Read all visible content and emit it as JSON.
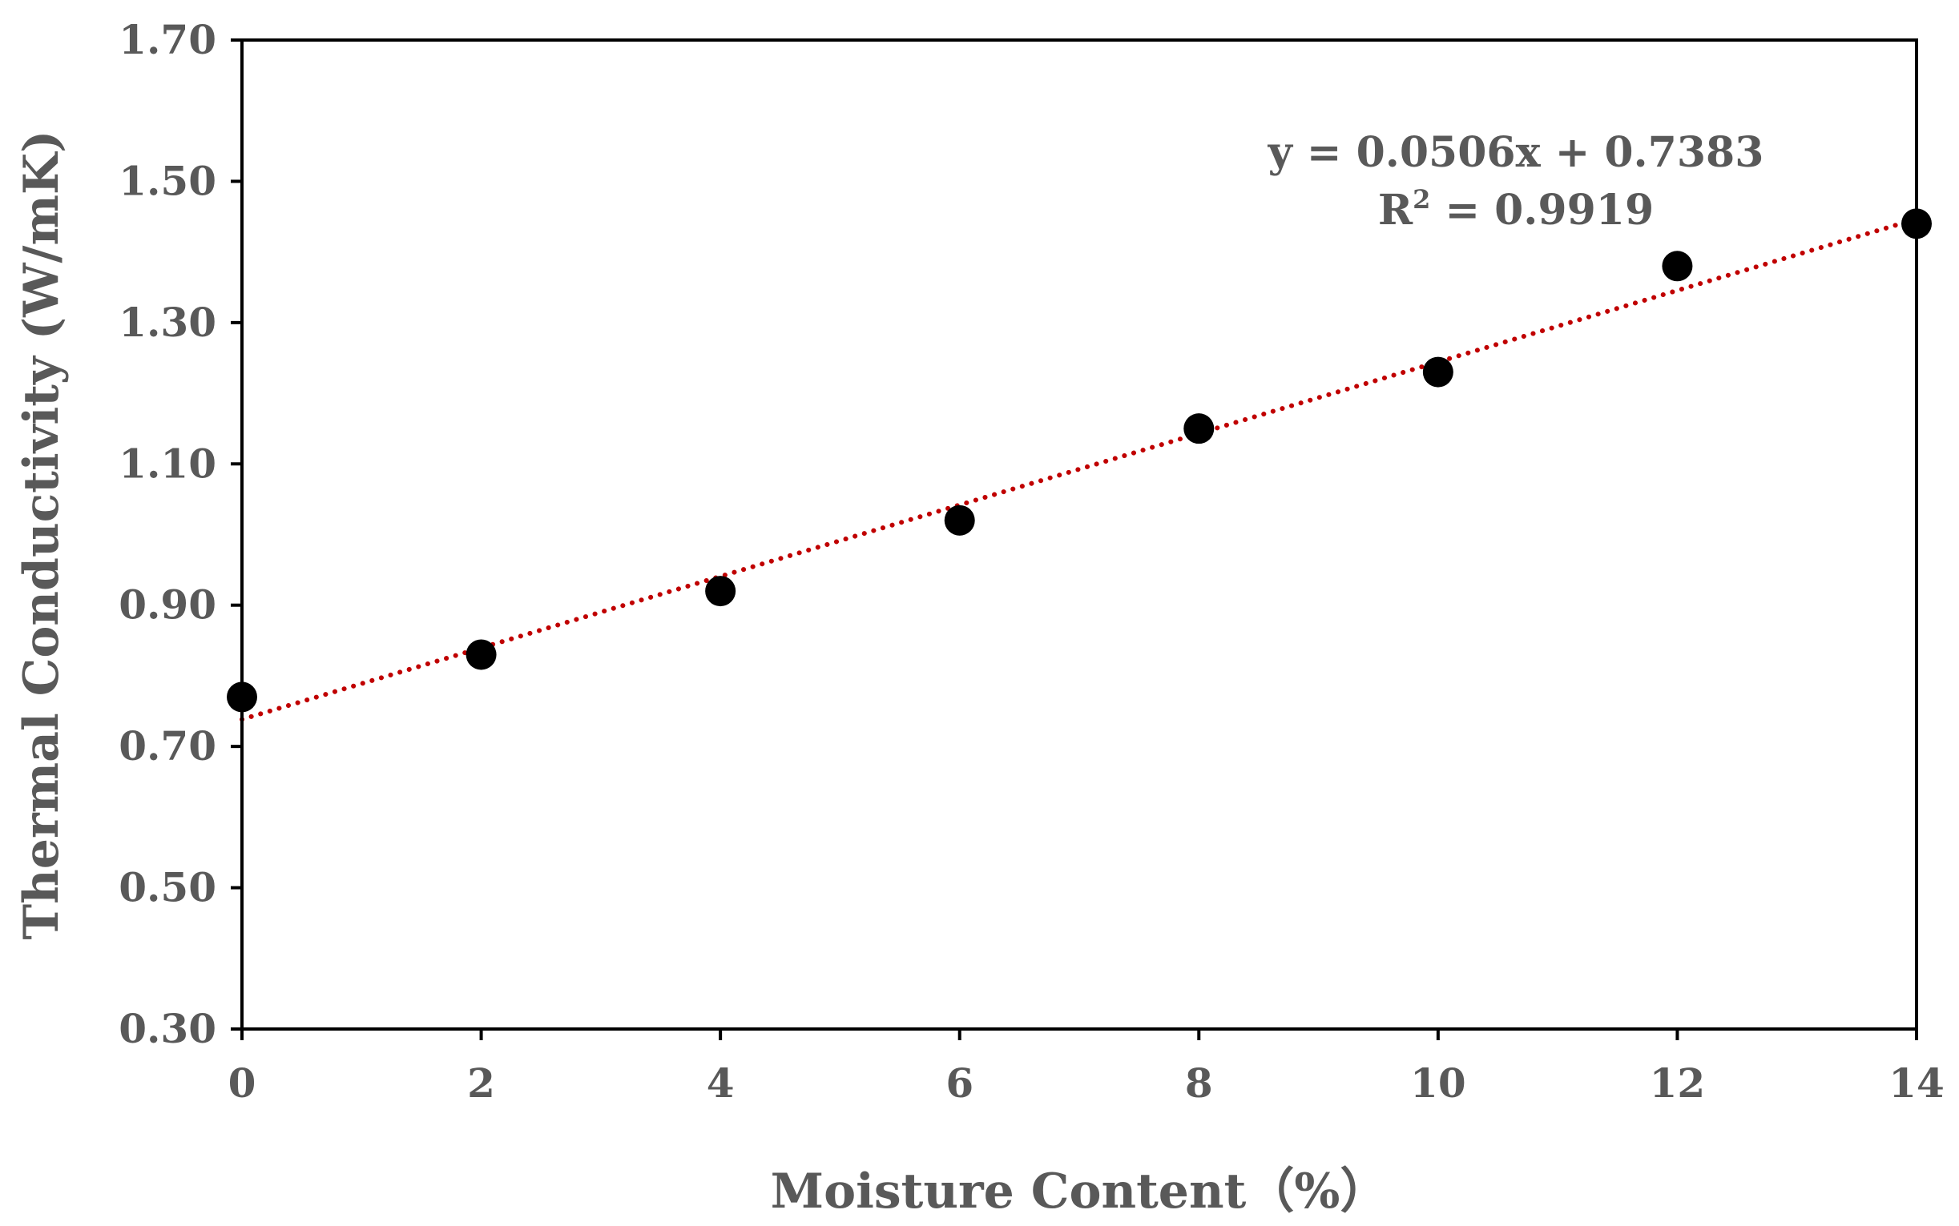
{
  "chart_data": {
    "type": "scatter",
    "title": "",
    "xlabel": "Moisture Content（%）",
    "ylabel": "Thermal Conductivity (W/mK)",
    "xlim": [
      0,
      14
    ],
    "ylim": [
      0.3,
      1.7
    ],
    "x_ticks": [
      "0",
      "2",
      "4",
      "6",
      "8",
      "10",
      "12",
      "14"
    ],
    "y_ticks": [
      "0.30",
      "0.50",
      "0.70",
      "0.90",
      "1.10",
      "1.30",
      "1.50",
      "1.70"
    ],
    "grid": false,
    "legend": "none",
    "series": [
      {
        "x": [
          0,
          2,
          4,
          6,
          8,
          10,
          12,
          14
        ],
        "y": [
          0.77,
          0.83,
          0.92,
          1.02,
          1.15,
          1.23,
          1.38,
          1.44
        ],
        "color": "#000000"
      }
    ],
    "trendline": {
      "type": "linear",
      "slope": 0.0506,
      "intercept": 0.7383,
      "color": "#c00000",
      "style": "dotted",
      "equation": "y = 0.0506x + 0.7383",
      "r2_prefix": "R",
      "r2_exp": "2",
      "r2_value": " = 0.9919"
    }
  }
}
